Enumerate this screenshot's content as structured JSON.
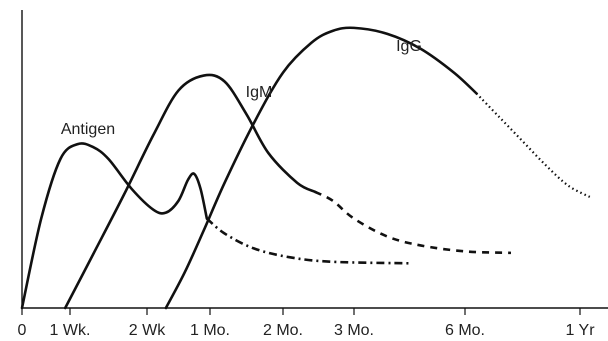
{
  "chart_data": {
    "type": "line",
    "title": "",
    "xlabel": "",
    "ylabel": "",
    "grid": false,
    "legend": "none",
    "x_ticks": [
      {
        "t": 0,
        "label": "0"
      },
      {
        "t": 1,
        "label": "1 Wk."
      },
      {
        "t": 2,
        "label": "2 Wk"
      },
      {
        "t": 3,
        "label": "1 Mo."
      },
      {
        "t": 4,
        "label": "2 Mo."
      },
      {
        "t": 5,
        "label": "3 Mo."
      },
      {
        "t": 6,
        "label": "6 Mo."
      },
      {
        "t": 7,
        "label": "1 Yr"
      }
    ],
    "xlim": [
      0,
      7.1
    ],
    "ylim": [
      0,
      100
    ],
    "series": [
      {
        "name": "Antigen",
        "color": "#111111",
        "segments": [
          {
            "style": "solid",
            "points": [
              [
                0,
                0
              ],
              [
                0.4,
                30
              ],
              [
                0.8,
                50
              ],
              [
                1.1,
                55
              ],
              [
                1.3,
                54
              ],
              [
                1.5,
                50
              ],
              [
                1.8,
                40
              ],
              [
                2.1,
                33
              ],
              [
                2.3,
                32
              ],
              [
                2.5,
                36
              ],
              [
                2.65,
                43
              ],
              [
                2.75,
                45
              ],
              [
                2.85,
                40
              ],
              [
                2.95,
                30
              ]
            ]
          },
          {
            "style": "dashdot",
            "points": [
              [
                2.95,
                30
              ],
              [
                3.2,
                25
              ],
              [
                3.6,
                20
              ],
              [
                4.1,
                17
              ],
              [
                4.7,
                15.5
              ],
              [
                5.5,
                15
              ]
            ]
          }
        ]
      },
      {
        "name": "IgM",
        "color": "#111111",
        "segments": [
          {
            "style": "solid",
            "points": [
              [
                0.9,
                0
              ],
              [
                1.3,
                18
              ],
              [
                1.7,
                38
              ],
              [
                2.1,
                58
              ],
              [
                2.5,
                73
              ],
              [
                2.9,
                78
              ],
              [
                3.2,
                76
              ],
              [
                3.5,
                65
              ],
              [
                3.8,
                52
              ],
              [
                4.2,
                42
              ],
              [
                4.45,
                39
              ]
            ]
          },
          {
            "style": "dashed",
            "points": [
              [
                4.45,
                39
              ],
              [
                4.7,
                36
              ],
              [
                5.0,
                30
              ],
              [
                5.3,
                24
              ],
              [
                5.6,
                21
              ],
              [
                6.0,
                19
              ],
              [
                6.4,
                18.5
              ]
            ]
          }
        ]
      },
      {
        "name": "IgG",
        "color": "#111111",
        "segments": [
          {
            "style": "solid",
            "points": [
              [
                2.3,
                0
              ],
              [
                2.6,
                12
              ],
              [
                2.9,
                26
              ],
              [
                3.2,
                42
              ],
              [
                3.6,
                62
              ],
              [
                4.0,
                79
              ],
              [
                4.4,
                89
              ],
              [
                4.7,
                93
              ],
              [
                5.0,
                94
              ],
              [
                5.3,
                92
              ],
              [
                5.6,
                87
              ],
              [
                5.9,
                79
              ],
              [
                6.1,
                72
              ]
            ]
          },
          {
            "style": "dotted",
            "points": [
              [
                6.1,
                72
              ],
              [
                6.3,
                64
              ],
              [
                6.5,
                56
              ],
              [
                6.7,
                48
              ],
              [
                6.9,
                41
              ],
              [
                7.1,
                37
              ]
            ]
          }
        ]
      }
    ]
  },
  "colors": {
    "background": "#ffffff",
    "axis": "#111111",
    "curve": "#111111"
  }
}
